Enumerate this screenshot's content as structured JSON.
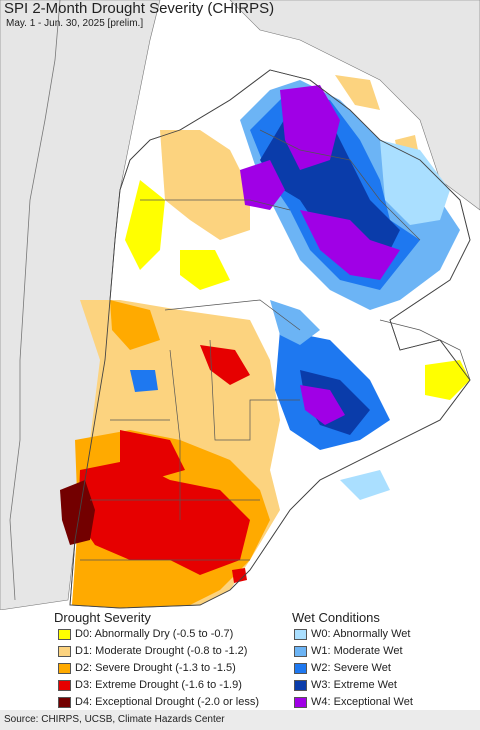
{
  "title": "SPI 2-Month Drought Severity (CHIRPS)",
  "subtitle": "May. 1 - Jun. 30, 2025 [prelim.]",
  "legend": {
    "drought": {
      "heading": "Drought Severity",
      "items": [
        {
          "label": "D0: Abnormally Dry (-0.5 to -0.7)",
          "color": "#ffff00"
        },
        {
          "label": "D1: Moderate Drought (-0.8 to -1.2)",
          "color": "#fcd37f"
        },
        {
          "label": "D2: Severe Drought (-1.3 to -1.5)",
          "color": "#ffaa00"
        },
        {
          "label": "D3: Extreme Drought (-1.6 to -1.9)",
          "color": "#e60000"
        },
        {
          "label": "D4: Exceptional Drought (-2.0 or less)",
          "color": "#730000"
        }
      ]
    },
    "wet": {
      "heading": "Wet Conditions",
      "items": [
        {
          "label": "W0: Abnormally Wet",
          "color": "#aadfff"
        },
        {
          "label": "W1: Moderate Wet",
          "color": "#6cb4f5"
        },
        {
          "label": "W2: Severe Wet",
          "color": "#1e78f0"
        },
        {
          "label": "W3: Extreme Wet",
          "color": "#0a3caa"
        },
        {
          "label": "W4: Exceptional Wet",
          "color": "#a000e6"
        }
      ]
    }
  },
  "source": "Source: CHIRPS, UCSB, Climate Hazards Center",
  "colors": {
    "land_other": "#ffffff",
    "outside": "#e6e6e6",
    "border": "#555555"
  }
}
